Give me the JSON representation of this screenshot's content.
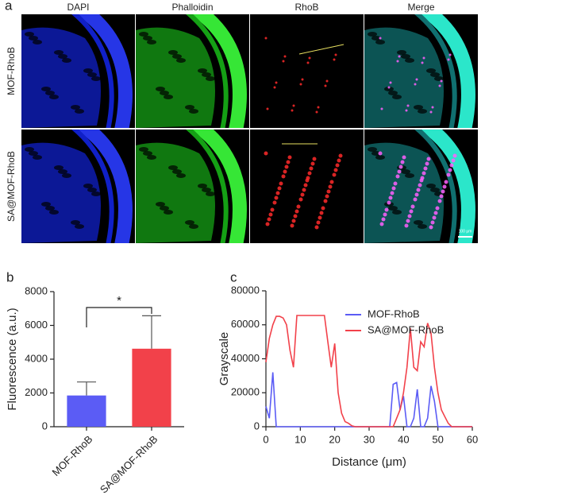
{
  "panel_a": {
    "label": "a",
    "columns": [
      "DAPI",
      "Phalloidin",
      "RhoB",
      "Merge"
    ],
    "rows": [
      "MOF-RhoB",
      "SA@MOF-RhoB"
    ],
    "scale_bar": "100 μm"
  },
  "chart_data": [
    {
      "type": "bar",
      "panel_label": "b",
      "y_label": "Fluorescence (a.u.)",
      "categories": [
        "MOF-RhoB",
        "SA@MOF-RhoB"
      ],
      "values": [
        1850,
        4620
      ],
      "errors": [
        800,
        1950
      ],
      "colors": [
        "#5b5cf5",
        "#f2414a"
      ],
      "ylim": [
        0,
        8000
      ],
      "yticks": [
        0,
        2000,
        4000,
        6000,
        8000
      ],
      "annotation": "*"
    },
    {
      "type": "line",
      "panel_label": "c",
      "x_label": "Distance (μm)",
      "y_label": "Grayscale",
      "x": [
        0,
        1,
        2,
        3,
        4,
        5,
        6,
        7,
        8,
        9,
        10,
        11,
        12,
        13,
        14,
        15,
        16,
        17,
        18,
        19,
        20,
        21,
        22,
        23,
        24,
        25,
        26,
        27,
        28,
        29,
        30,
        31,
        32,
        33,
        34,
        35,
        36,
        37,
        38,
        39,
        40,
        41,
        42,
        43,
        44,
        45,
        46,
        47,
        48,
        49,
        50,
        51,
        52,
        53,
        54,
        55,
        56,
        57,
        58,
        59,
        60
      ],
      "series": [
        {
          "name": "MOF-RhoB",
          "color": "#5b5cf5",
          "values": [
            12000,
            5000,
            32000,
            0,
            0,
            0,
            0,
            0,
            0,
            0,
            0,
            0,
            0,
            0,
            0,
            0,
            0,
            0,
            0,
            0,
            0,
            0,
            0,
            0,
            0,
            0,
            0,
            0,
            0,
            0,
            0,
            0,
            0,
            0,
            0,
            0,
            0,
            25000,
            26000,
            10000,
            18000,
            0,
            0,
            5000,
            22000,
            0,
            0,
            5000,
            24000,
            15000,
            0,
            0,
            0,
            0,
            0,
            0,
            0,
            0,
            0,
            0,
            0
          ]
        },
        {
          "name": "SA@MOF-RhoB",
          "color": "#f2414a",
          "values": [
            38000,
            52000,
            60000,
            65000,
            65000,
            64000,
            60000,
            45000,
            35000,
            65500,
            65500,
            65500,
            65500,
            65500,
            65500,
            65500,
            65500,
            65500,
            50000,
            35000,
            49000,
            20000,
            8000,
            3000,
            2000,
            500,
            0,
            0,
            0,
            0,
            0,
            0,
            0,
            0,
            0,
            0,
            0,
            0,
            5000,
            10000,
            20000,
            35000,
            58000,
            35000,
            33000,
            50000,
            47000,
            61000,
            55000,
            35000,
            20000,
            10000,
            6000,
            2000,
            0,
            0,
            0,
            0,
            0,
            0,
            0
          ]
        }
      ],
      "xlim": [
        0,
        60
      ],
      "xticks": [
        0,
        10,
        20,
        30,
        40,
        50,
        60
      ],
      "ylim": [
        0,
        80000
      ],
      "yticks": [
        0,
        20000,
        40000,
        60000,
        80000
      ],
      "legend": "top-right"
    }
  ]
}
